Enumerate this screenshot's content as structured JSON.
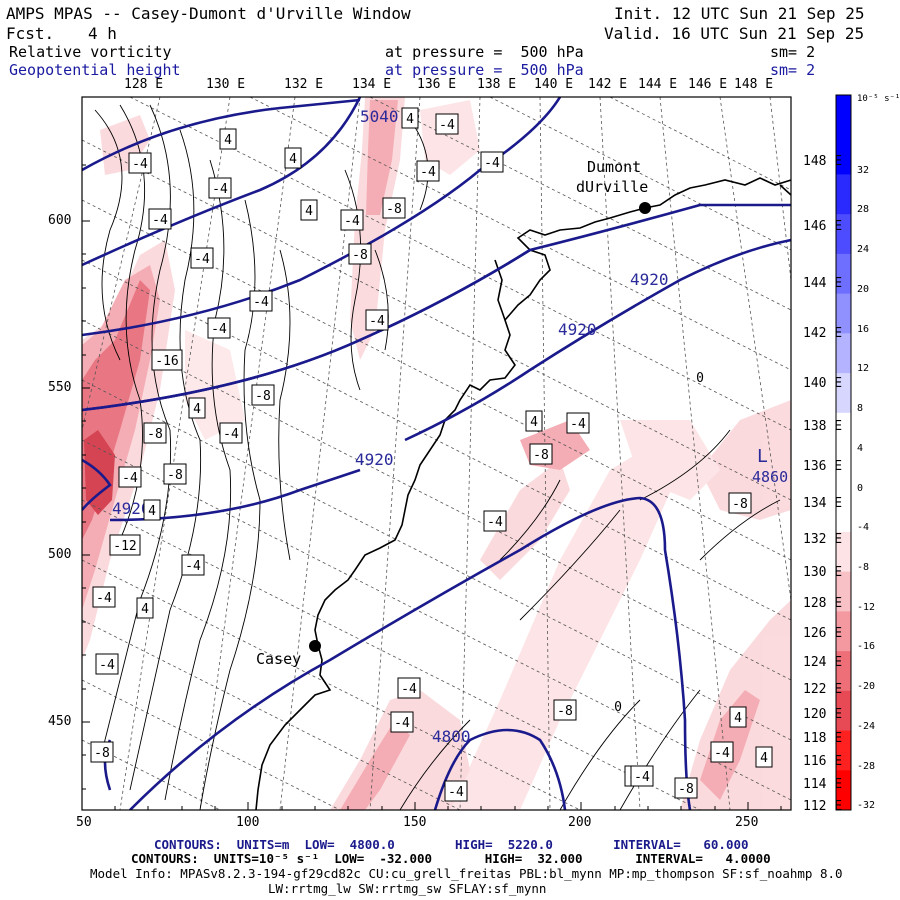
{
  "header": {
    "title": "AMPS MPAS -- Casey-Dumont d'Urville Window",
    "fcst_label": "Fcst.",
    "fcst_value": "4 h",
    "init": "Init. 12 UTC Sun 21 Sep 25",
    "valid": "Valid. 16 UTC Sun 21 Sep 25",
    "field1": "Relative vorticity",
    "field1_pressure": "at pressure =  500 hPa",
    "field1_sm": "sm= 2",
    "field2": "Geopotential height",
    "field2_pressure": "at pressure =  500 hPa",
    "field2_sm": "sm= 2"
  },
  "colors": {
    "height_contour": "#1a1a8c",
    "coast": "#000000",
    "pink_light": "#fbd9dc",
    "pink_mid": "#f4a9b0",
    "pink_dark": "#e8707d",
    "red_deep": "#d23a4a"
  },
  "axes": {
    "top_lon_labels": [
      "128 E",
      "130 E",
      "132 E",
      "134 E",
      "136 E",
      "138 E",
      "140 E",
      "142 E",
      "144 E",
      "146 E",
      "148 E"
    ],
    "right_lon_labels": [
      "148 E",
      "146 E",
      "144 E",
      "142 E",
      "140 E",
      "138 E",
      "136 E",
      "134 E",
      "132 E",
      "130 E",
      "128 E",
      "126 E",
      "124 E",
      "122 E",
      "120 E",
      "118 E",
      "116 E",
      "114 E",
      "112 E"
    ],
    "left_y_labels": [
      "600",
      "550",
      "500",
      "450"
    ],
    "bottom_x_labels": [
      "50",
      "100",
      "150",
      "200",
      "250"
    ]
  },
  "legend": {
    "unit": "10⁻⁵ s⁻¹",
    "labels": [
      "32",
      "28",
      "24",
      "20",
      "16",
      "12",
      "8",
      "4",
      "0",
      "-4",
      "-8",
      "-12",
      "-16",
      "-20",
      "-24",
      "-28",
      "-32"
    ],
    "colors": [
      "#0000ff",
      "#2a2aff",
      "#4d4dff",
      "#6e6eff",
      "#9090ff",
      "#b3b3ff",
      "#d6d6ff",
      "#ffffff",
      "#ffffff",
      "#ffffff",
      "#fde3e5",
      "#f8c1c6",
      "#f3999f",
      "#ee6f78",
      "#e84a55",
      "#ff2020",
      "#ff0000"
    ]
  },
  "places": {
    "casey": "Casey",
    "dumont": "Dumont",
    "durville": "dUrville",
    "low": "L",
    "low_value": "4860"
  },
  "height_labels": [
    "5040",
    "4920",
    "4920",
    "4920",
    "4800",
    "4920"
  ],
  "vort_labels": [
    "4",
    "-4",
    "4",
    "-4",
    "-4",
    "4",
    "-4",
    "-8",
    "-4",
    "-4",
    "-4",
    "4",
    "-4",
    "-4",
    "-8",
    "-4",
    "4",
    "-4",
    "-8",
    "-16",
    "-4",
    "-8",
    "-8",
    "-4",
    "4",
    "-4",
    "-12",
    "-4",
    "4",
    "-4",
    "-8",
    "-4",
    "-4",
    "-4",
    "-8",
    "-4",
    "4",
    "-8",
    "-8",
    "4",
    "4",
    "-4",
    "-4",
    "-4",
    "-8",
    "-4",
    "0",
    "0"
  ],
  "footer": {
    "line1": "CONTOURS:  UNITS=m  LOW=  4800.0        HIGH=  5220.0        INTERVAL=   60.000",
    "line2": "CONTOURS:  UNITS=10⁻⁵ s⁻¹  LOW=  -32.000       HIGH=  32.000       INTERVAL=   4.0000",
    "line3": "Model Info: MPASv8.2.3-194-gf29cd82c CU:cu_grell_freitas PBL:bl_mynn MP:mp_thompson SF:sf_noahmp 8.0",
    "line4": "LW:rrtmg_lw SW:rrtmg_sw SFLAY:sf_mynn"
  }
}
